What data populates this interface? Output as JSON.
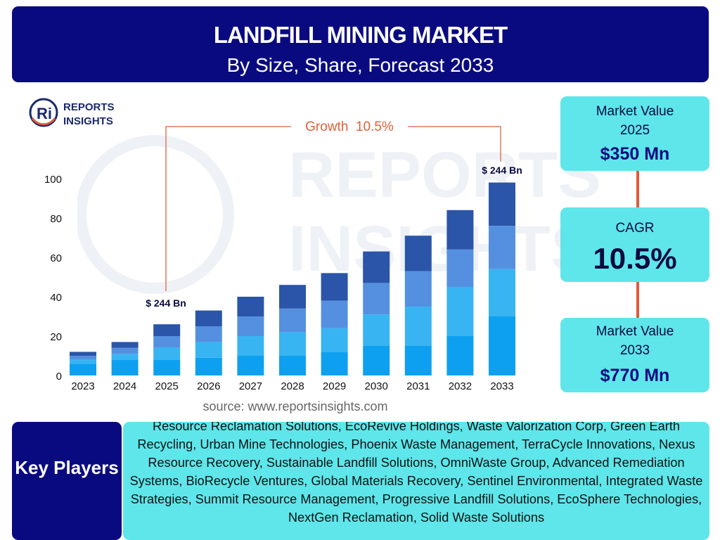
{
  "header": {
    "title": "LANDFILL MINING MARKET",
    "subtitle": "By Size, Share, Forecast 2033"
  },
  "logo": {
    "line1": "REPORTS",
    "line2": "INSIGHTS",
    "letters": "Ri"
  },
  "watermark": {
    "line1": "REPORTS",
    "line2": "INSIGHTS"
  },
  "growth_label": "Growth  10.5%",
  "annotations": {
    "start": "$ 244 Bn",
    "end": "$ 244 Bn"
  },
  "market_value_2025": {
    "label": "Market Value\n2025",
    "value": "$350 Mn"
  },
  "cagr": {
    "label": "CAGR",
    "value": "10.5%"
  },
  "market_value_2033": {
    "label": "Market Value\n2033",
    "value": "$770 Mn"
  },
  "source": "source: www.reportsinsights.com",
  "key_players": {
    "label": "Key Players",
    "text": "Resource Reclamation Solutions, EcoRevive Holdings, Waste Valorization Corp, Green Earth Recycling, Urban Mine Technologies, Phoenix Waste Management, TerraCycle Innovations, Nexus Resource Recovery, Sustainable Landfill Solutions, OmniWaste Group, Advanced Remediation Systems, BioRecycle Ventures, Global Materials Recovery, Sentinel Environmental, Integrated Waste Strategies, Summit Resource Management, Progressive Landfill Solutions, EcoSphere Technologies, NextGen Reclamation, Solid Waste Solutions"
  },
  "colors": {
    "header_bg": "#0a0a80",
    "box_bg": "#5ee6ea",
    "accent": "#e05a3a",
    "segments": [
      "#0ea0f0",
      "#38b4f2",
      "#5590e0",
      "#2a55a8"
    ]
  },
  "chart_data": {
    "type": "bar",
    "stacked": true,
    "categories": [
      "2023",
      "2024",
      "2025",
      "2026",
      "2027",
      "2028",
      "2029",
      "2030",
      "2031",
      "2032",
      "2033"
    ],
    "series": [
      {
        "values": [
          6,
          8,
          8,
          9,
          10,
          10,
          12,
          15,
          15,
          20,
          30
        ]
      },
      {
        "values": [
          2,
          3,
          6,
          8,
          10,
          12,
          12,
          16,
          20,
          25,
          24
        ]
      },
      {
        "values": [
          2,
          3,
          6,
          8,
          10,
          12,
          14,
          16,
          18,
          19,
          22
        ]
      },
      {
        "values": [
          2,
          3,
          6,
          8,
          10,
          12,
          14,
          16,
          18,
          20,
          22
        ]
      }
    ],
    "yticks": [
      0,
      20,
      40,
      60,
      80,
      100
    ],
    "ylim": [
      0,
      100
    ],
    "grid": false
  }
}
